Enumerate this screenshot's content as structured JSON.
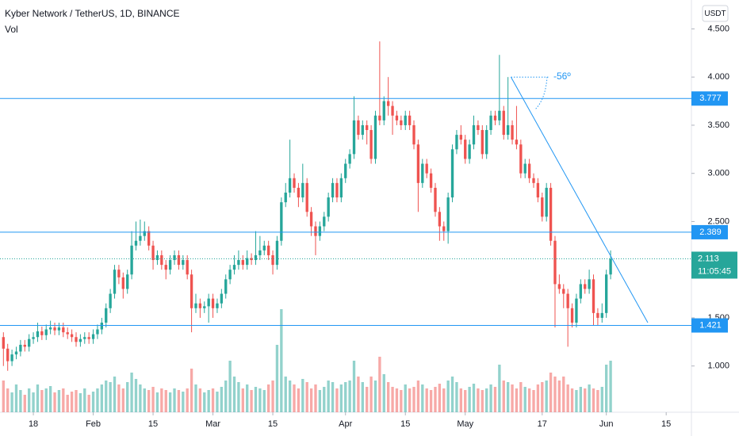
{
  "chart_data": {
    "type": "candlestick",
    "title": "Kyber Network / TetherUS, 1D, BINANCE",
    "vol_label": "Vol",
    "currency": "USDT",
    "countdown": "11:05:45",
    "angle_label": "-56º",
    "up_color": "#26a69a",
    "down_color": "#ef5350",
    "line_color": "#2196f3",
    "open": [
      1.3,
      1.18,
      1.05,
      1.12,
      1.15,
      1.22,
      1.2,
      1.28,
      1.3,
      1.36,
      1.32,
      1.38,
      1.4,
      1.37,
      1.4,
      1.35,
      1.33,
      1.3,
      1.25,
      1.28,
      1.3,
      1.28,
      1.33,
      1.38,
      1.45,
      1.6,
      1.75,
      2.0,
      1.92,
      1.8,
      1.95,
      2.25,
      2.3,
      2.35,
      2.4,
      2.25,
      2.1,
      2.15,
      2.05,
      2.0,
      2.1,
      2.15,
      2.05,
      2.1,
      1.95,
      1.6,
      1.65,
      1.6,
      1.62,
      1.7,
      1.6,
      1.65,
      1.75,
      1.9,
      2.0,
      2.05,
      2.1,
      2.05,
      2.12,
      2.1,
      2.15,
      2.2,
      2.25,
      2.15,
      2.05,
      2.3,
      2.7,
      2.8,
      2.95,
      2.85,
      2.75,
      2.9,
      2.6,
      2.45,
      2.35,
      2.45,
      2.55,
      2.75,
      2.9,
      2.75,
      2.95,
      3.1,
      3.2,
      3.55,
      3.4,
      3.5,
      3.45,
      3.15,
      3.6,
      3.55,
      3.75,
      3.7,
      3.6,
      3.55,
      3.5,
      3.6,
      3.5,
      3.3,
      2.9,
      3.1,
      3.0,
      2.85,
      2.6,
      2.45,
      2.4,
      2.75,
      3.25,
      3.4,
      3.35,
      3.15,
      3.3,
      3.5,
      3.45,
      3.2,
      3.45,
      3.6,
      3.55,
      3.65,
      3.4,
      3.5,
      3.35,
      3.3,
      3.0,
      3.1,
      2.95,
      2.9,
      2.75,
      2.55,
      2.85,
      2.3,
      1.85,
      1.8,
      1.75,
      1.6,
      1.45,
      1.7,
      1.85,
      1.8,
      1.9,
      1.55,
      1.5,
      1.55,
      1.95
    ],
    "high": [
      1.35,
      1.23,
      1.17,
      1.2,
      1.27,
      1.27,
      1.33,
      1.35,
      1.45,
      1.41,
      1.43,
      1.47,
      1.45,
      1.45,
      1.45,
      1.4,
      1.38,
      1.35,
      1.33,
      1.35,
      1.35,
      1.38,
      1.43,
      1.5,
      1.65,
      1.8,
      2.05,
      2.05,
      1.97,
      2.0,
      2.4,
      2.5,
      2.52,
      2.5,
      2.45,
      2.3,
      2.2,
      2.2,
      2.1,
      2.15,
      2.2,
      2.2,
      2.15,
      2.15,
      2.0,
      1.75,
      1.7,
      1.67,
      1.75,
      1.75,
      1.7,
      1.8,
      1.95,
      2.05,
      2.15,
      2.2,
      2.15,
      2.2,
      2.17,
      2.4,
      2.35,
      2.3,
      2.3,
      2.2,
      2.35,
      2.75,
      2.9,
      3.35,
      3.0,
      2.9,
      3.1,
      2.95,
      2.65,
      2.5,
      2.5,
      2.6,
      2.8,
      2.95,
      2.95,
      3.0,
      3.15,
      3.25,
      3.8,
      3.6,
      3.55,
      3.55,
      3.5,
      3.65,
      4.37,
      3.8,
      4.0,
      3.75,
      3.65,
      3.6,
      3.65,
      3.65,
      3.55,
      3.35,
      3.15,
      3.15,
      3.05,
      2.9,
      2.65,
      2.5,
      2.8,
      3.3,
      3.45,
      3.5,
      3.4,
      3.35,
      3.6,
      3.55,
      3.5,
      3.5,
      3.65,
      3.65,
      4.23,
      3.7,
      4.0,
      3.55,
      3.7,
      3.35,
      3.15,
      3.15,
      3.0,
      2.95,
      2.8,
      2.9,
      2.9,
      2.35,
      1.95,
      1.85,
      1.8,
      1.65,
      1.75,
      1.9,
      1.9,
      2.0,
      1.95,
      1.6,
      1.65,
      2.0,
      2.2
    ],
    "low": [
      1.0,
      0.95,
      1.0,
      1.07,
      1.1,
      1.15,
      1.15,
      1.23,
      1.25,
      1.27,
      1.27,
      1.33,
      1.32,
      1.32,
      1.3,
      1.28,
      1.25,
      1.2,
      1.2,
      1.23,
      1.23,
      1.23,
      1.28,
      1.33,
      1.4,
      1.55,
      1.7,
      1.85,
      1.7,
      1.75,
      1.9,
      2.2,
      2.25,
      2.3,
      2.2,
      2.0,
      2.05,
      2.0,
      1.9,
      1.95,
      2.05,
      2.0,
      2.0,
      1.9,
      1.35,
      1.55,
      1.5,
      1.55,
      1.45,
      1.5,
      1.55,
      1.6,
      1.7,
      1.85,
      1.95,
      2.0,
      2.0,
      2.0,
      2.05,
      2.05,
      2.1,
      2.15,
      2.1,
      1.95,
      2.0,
      2.25,
      2.65,
      2.75,
      2.8,
      2.65,
      2.7,
      2.55,
      2.35,
      2.15,
      2.3,
      2.4,
      2.5,
      2.7,
      2.7,
      2.7,
      2.9,
      3.05,
      3.15,
      3.35,
      3.35,
      3.3,
      3.1,
      3.1,
      3.5,
      3.5,
      3.6,
      3.4,
      3.5,
      3.45,
      3.45,
      3.45,
      3.25,
      2.6,
      2.85,
      2.95,
      2.8,
      2.55,
      2.3,
      2.3,
      2.27,
      2.7,
      3.2,
      3.3,
      3.1,
      3.1,
      3.25,
      3.4,
      3.15,
      3.15,
      3.4,
      3.5,
      3.5,
      3.35,
      3.35,
      3.3,
      3.25,
      2.95,
      2.95,
      2.9,
      2.85,
      2.7,
      2.5,
      2.5,
      2.25,
      1.4,
      1.75,
      1.6,
      1.2,
      1.4,
      1.4,
      1.65,
      1.75,
      1.75,
      1.42,
      1.42,
      1.45,
      1.5,
      1.9
    ],
    "close": [
      1.18,
      1.05,
      1.12,
      1.15,
      1.22,
      1.2,
      1.28,
      1.3,
      1.36,
      1.32,
      1.38,
      1.4,
      1.37,
      1.4,
      1.35,
      1.33,
      1.3,
      1.25,
      1.28,
      1.3,
      1.28,
      1.33,
      1.38,
      1.45,
      1.6,
      1.75,
      2.0,
      1.92,
      1.8,
      1.95,
      2.25,
      2.3,
      2.35,
      2.4,
      2.25,
      2.1,
      2.15,
      2.05,
      2.0,
      2.1,
      2.15,
      2.05,
      2.1,
      1.95,
      1.6,
      1.65,
      1.6,
      1.62,
      1.7,
      1.6,
      1.65,
      1.75,
      1.9,
      2.0,
      2.05,
      2.1,
      2.05,
      2.12,
      2.1,
      2.15,
      2.2,
      2.25,
      2.15,
      2.05,
      2.3,
      2.7,
      2.8,
      2.95,
      2.85,
      2.75,
      2.9,
      2.6,
      2.45,
      2.35,
      2.45,
      2.55,
      2.75,
      2.9,
      2.75,
      2.95,
      3.1,
      3.2,
      3.55,
      3.4,
      3.5,
      3.45,
      3.15,
      3.6,
      3.55,
      3.75,
      3.7,
      3.6,
      3.55,
      3.5,
      3.6,
      3.5,
      3.3,
      2.9,
      3.1,
      3.0,
      2.85,
      2.6,
      2.45,
      2.4,
      2.75,
      3.25,
      3.4,
      3.35,
      3.15,
      3.3,
      3.5,
      3.45,
      3.2,
      3.45,
      3.6,
      3.55,
      3.65,
      3.4,
      3.5,
      3.35,
      3.3,
      3.0,
      3.1,
      2.95,
      2.9,
      2.75,
      2.55,
      2.85,
      2.3,
      1.85,
      1.8,
      1.75,
      1.6,
      1.45,
      1.7,
      1.85,
      1.8,
      1.9,
      1.55,
      1.5,
      1.55,
      1.95,
      2.113
    ],
    "volume": [
      40,
      30,
      25,
      35,
      28,
      22,
      30,
      25,
      35,
      28,
      30,
      33,
      25,
      28,
      30,
      22,
      26,
      28,
      24,
      30,
      22,
      26,
      30,
      35,
      40,
      38,
      45,
      35,
      30,
      38,
      50,
      42,
      35,
      30,
      28,
      32,
      25,
      30,
      28,
      25,
      30,
      28,
      26,
      30,
      55,
      35,
      30,
      25,
      28,
      30,
      26,
      32,
      40,
      65,
      45,
      38,
      30,
      35,
      28,
      32,
      30,
      28,
      35,
      40,
      85,
      130,
      45,
      40,
      35,
      30,
      42,
      38,
      30,
      35,
      28,
      32,
      40,
      38,
      30,
      35,
      38,
      40,
      65,
      45,
      38,
      32,
      45,
      40,
      70,
      48,
      38,
      32,
      30,
      28,
      35,
      30,
      32,
      40,
      35,
      30,
      28,
      32,
      36,
      30,
      40,
      45,
      38,
      30,
      28,
      32,
      36,
      30,
      28,
      30,
      35,
      32,
      60,
      40,
      38,
      35,
      30,
      38,
      32,
      30,
      28,
      35,
      38,
      40,
      50,
      45,
      40,
      45,
      35,
      30,
      28,
      32,
      30,
      35,
      30,
      28,
      32,
      60,
      65
    ],
    "xlim": [
      -0.8,
      160.9
    ],
    "xticks": [
      {
        "value": 7,
        "label": "18"
      },
      {
        "value": 21,
        "label": "Feb"
      },
      {
        "value": 35,
        "label": "15"
      },
      {
        "value": 49,
        "label": "Mar"
      },
      {
        "value": 63,
        "label": "15"
      },
      {
        "value": 80,
        "label": "Apr"
      },
      {
        "value": 94,
        "label": "15"
      },
      {
        "value": 108,
        "label": "May"
      },
      {
        "value": 126,
        "label": "17"
      },
      {
        "value": 141,
        "label": "Jun"
      },
      {
        "value": 155,
        "label": "15"
      }
    ],
    "ylim": [
      0.52,
      4.8
    ],
    "yticks": [
      {
        "value": 1,
        "label": "1.000"
      },
      {
        "value": 1.5,
        "label": "1.500"
      },
      {
        "value": 2.5,
        "label": "2.500"
      },
      {
        "value": 3,
        "label": "3.000"
      },
      {
        "value": 3.5,
        "label": "3.500"
      },
      {
        "value": 4,
        "label": "4.000"
      },
      {
        "value": 4.5,
        "label": "4.500"
      }
    ],
    "vlim": [
      0,
      150
    ],
    "grid": false,
    "hlines": [
      3.777,
      2.389,
      1.421
    ],
    "trendline": {
      "x": [
        118.7,
        150.7
      ],
      "y": [
        4.0,
        1.45
      ]
    }
  }
}
